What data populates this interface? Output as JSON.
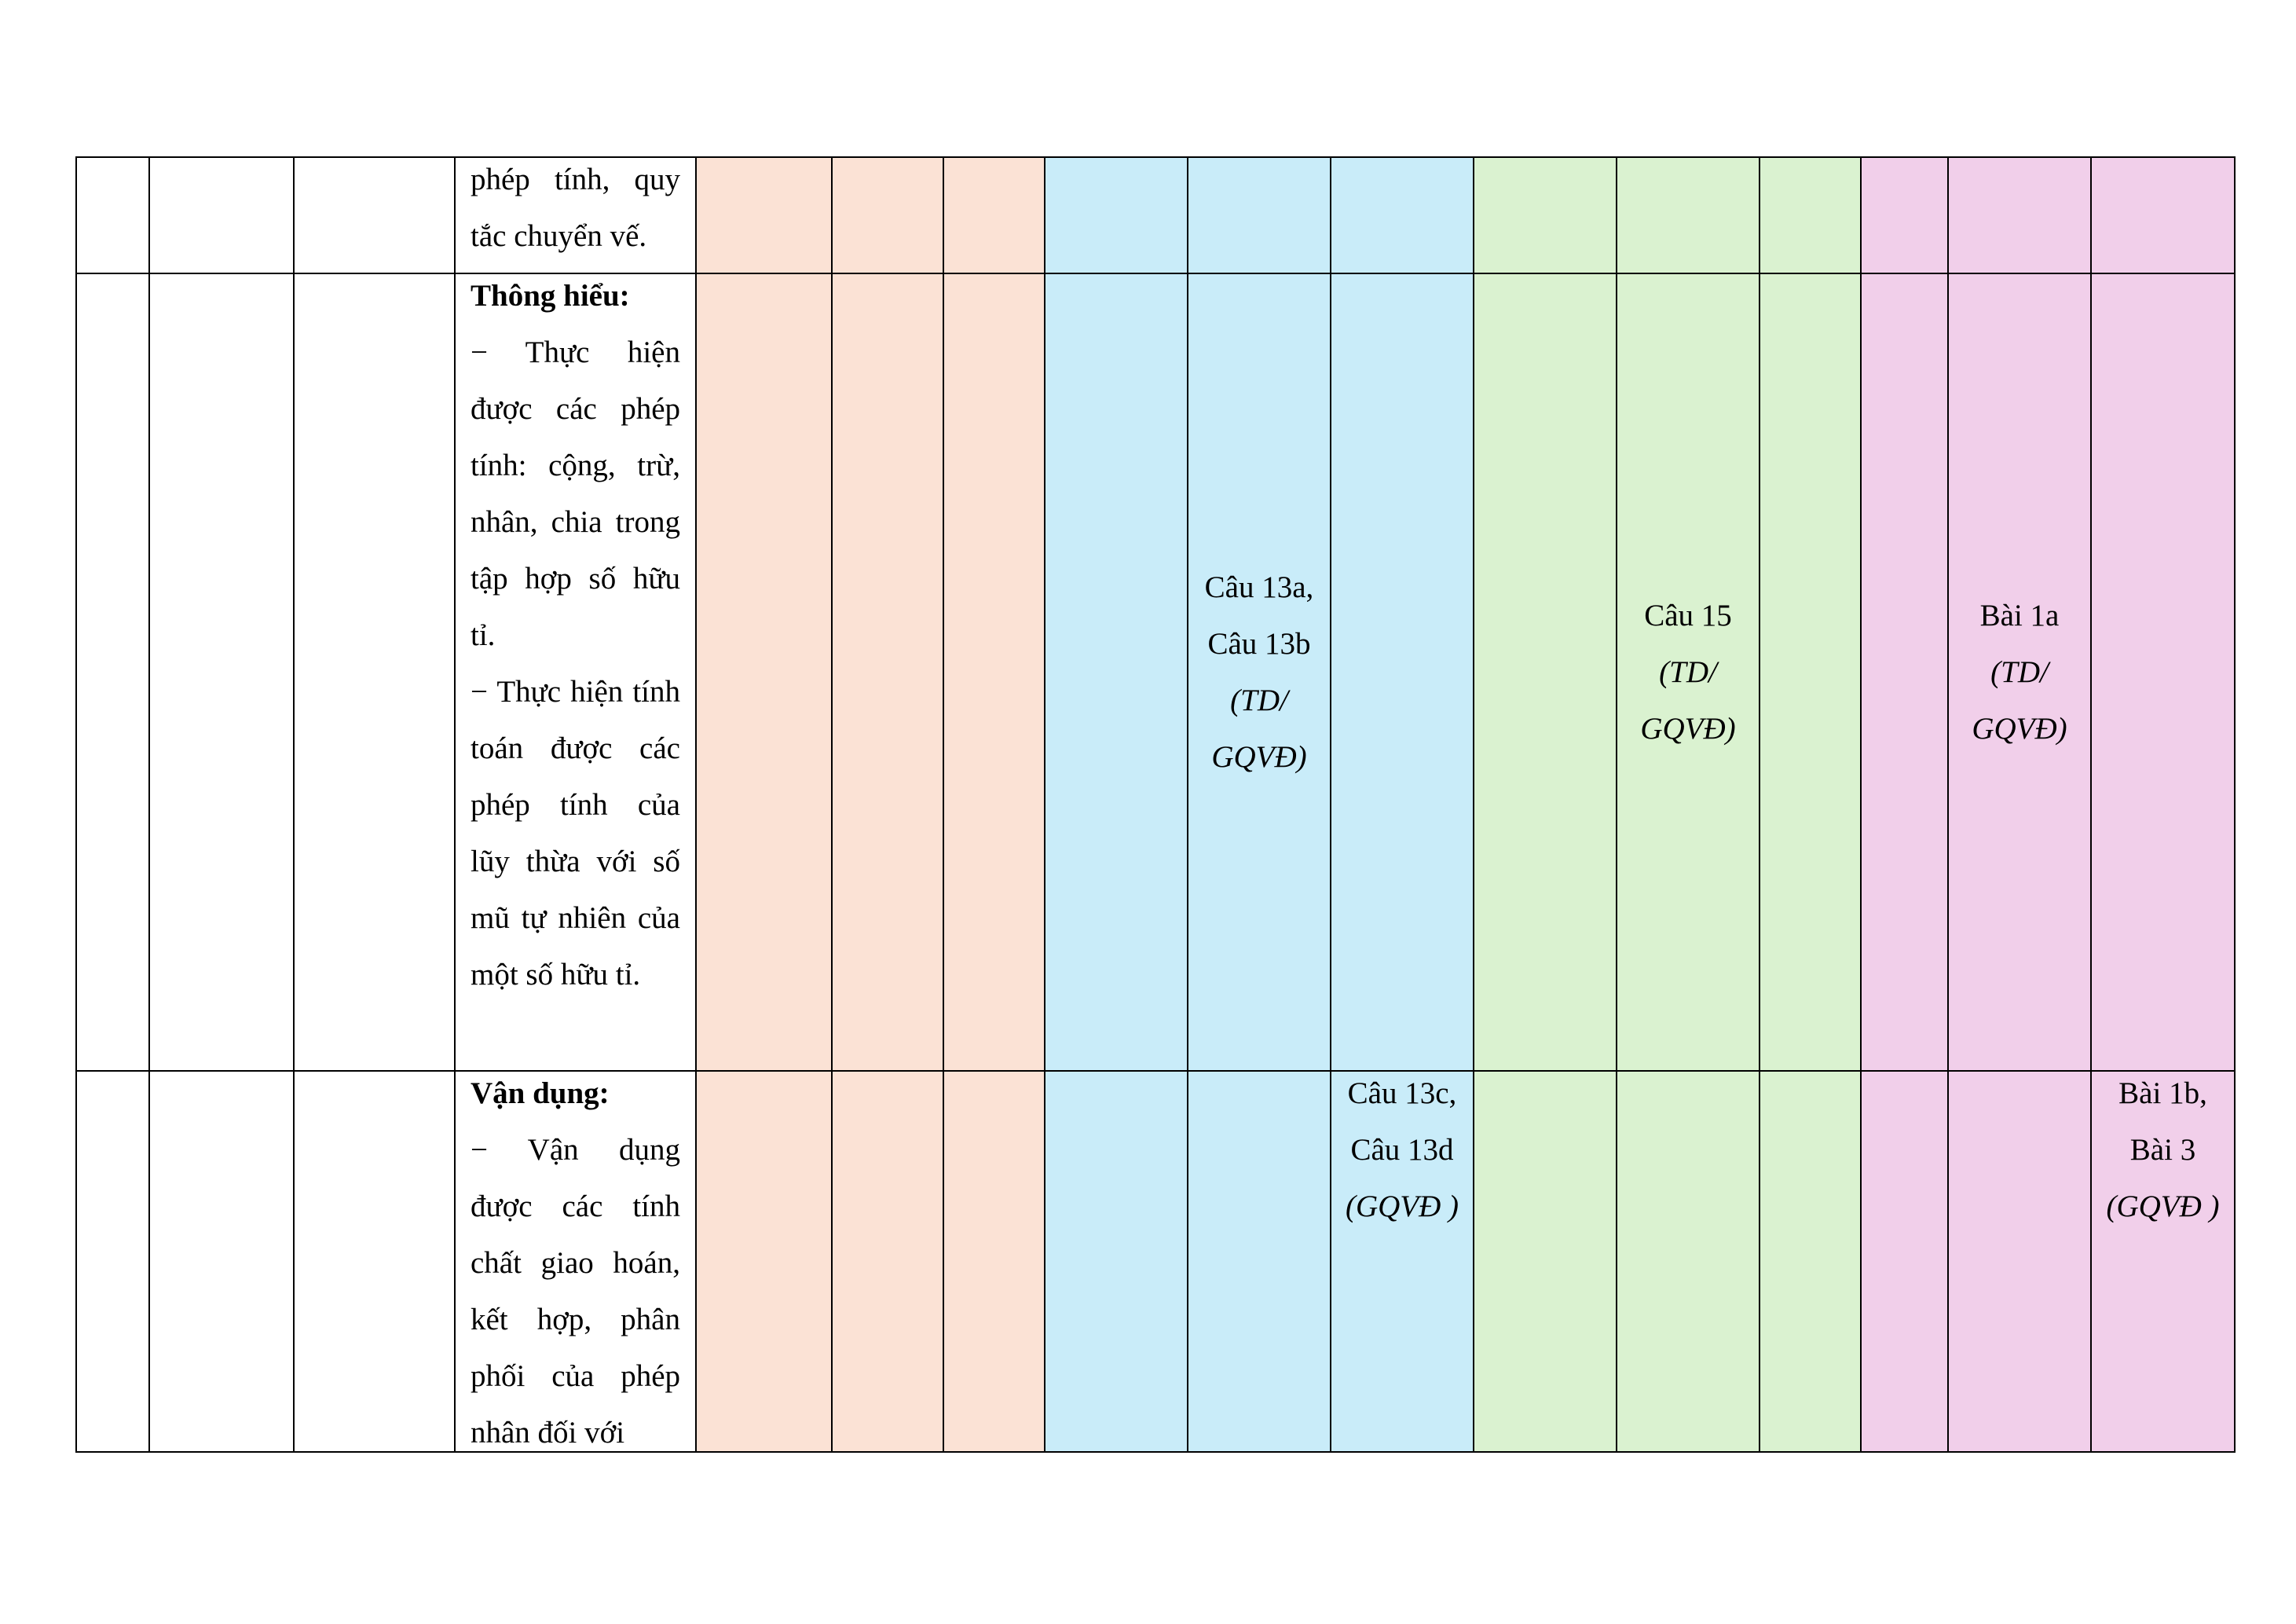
{
  "table": {
    "rows": [
      {
        "content": {
          "heading": null,
          "items": [
            "phép tính, quy tắc chuyển vế."
          ]
        },
        "cells": [
          null,
          null,
          null,
          null,
          null,
          null,
          null,
          null,
          null,
          null,
          null,
          null
        ]
      },
      {
        "content": {
          "heading": "Thông hiểu:",
          "items": [
            "− Thực hiện được các phép tính: cộng, trừ, nhân, chia trong tập hợp số hữu tỉ.",
            "− Thực hiện tính toán được các phép tính của lũy thừa với số mũ tự nhiên của một số hữu tỉ."
          ]
        },
        "cells": [
          null,
          null,
          null,
          null,
          {
            "text": "Câu 13a, Câu 13b",
            "note": "(TD/ GQVĐ)"
          },
          null,
          null,
          {
            "text": "Câu 15",
            "note": "(TD/ GQVĐ)"
          },
          null,
          null,
          {
            "text": "Bài 1a",
            "note": "(TD/ GQVĐ)"
          },
          null
        ]
      },
      {
        "content": {
          "heading": "Vận dụng:",
          "items": [
            "− Vận dụng được các tính chất giao hoán, kết hợp, phân phối của phép nhân đối với"
          ]
        },
        "cells": [
          null,
          null,
          null,
          null,
          null,
          {
            "text": "Câu 13c, Câu 13d",
            "note": "(GQVĐ )"
          },
          null,
          null,
          null,
          null,
          null,
          {
            "text": "Bài 1b, Bài 3",
            "note": "(GQVĐ )"
          }
        ]
      }
    ]
  }
}
